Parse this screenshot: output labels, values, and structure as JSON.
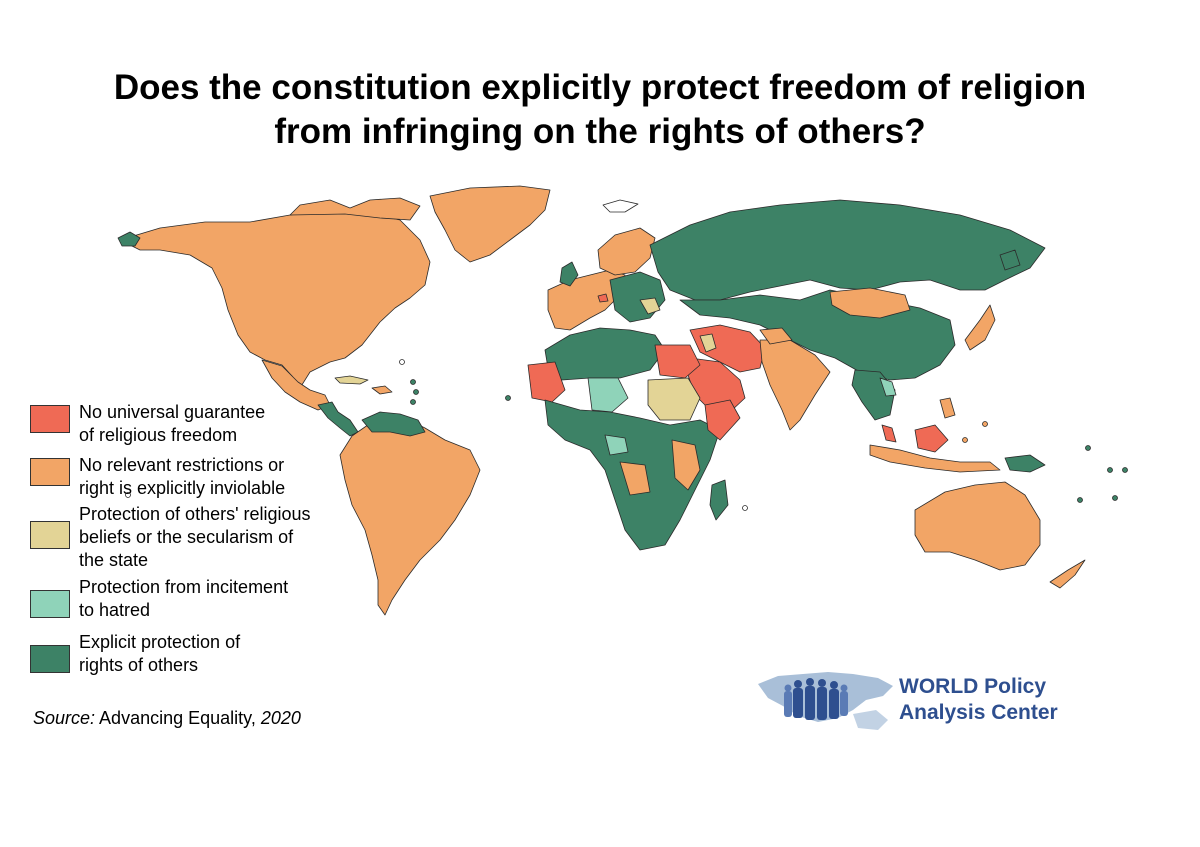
{
  "title": {
    "line1": "Does the constitution explicitly protect freedom of religion",
    "line2": "from infringing on the rights of others?"
  },
  "legend": [
    {
      "lines": [
        "No universal guarantee",
        "of religious freedom"
      ],
      "color": "#ef6a55"
    },
    {
      "lines": [
        "No relevant restrictions or",
        "right is explicitly inviolable"
      ],
      "color": "#f2a566"
    },
    {
      "lines": [
        "Protection of others' religious",
        "beliefs or the secularism of",
        "the state"
      ],
      "color": "#e3d496"
    },
    {
      "lines": [
        "Protection from incitement",
        "to hatred"
      ],
      "color": "#8fd3b9"
    },
    {
      "lines": [
        "Explicit protection of",
        "rights of others"
      ],
      "color": "#3d8266"
    }
  ],
  "source": {
    "label": "Source:",
    "text": " Advancing Equality, ",
    "year": "2020"
  },
  "logo": {
    "line1": "WORLD Policy",
    "line2": "Analysis Center"
  }
}
